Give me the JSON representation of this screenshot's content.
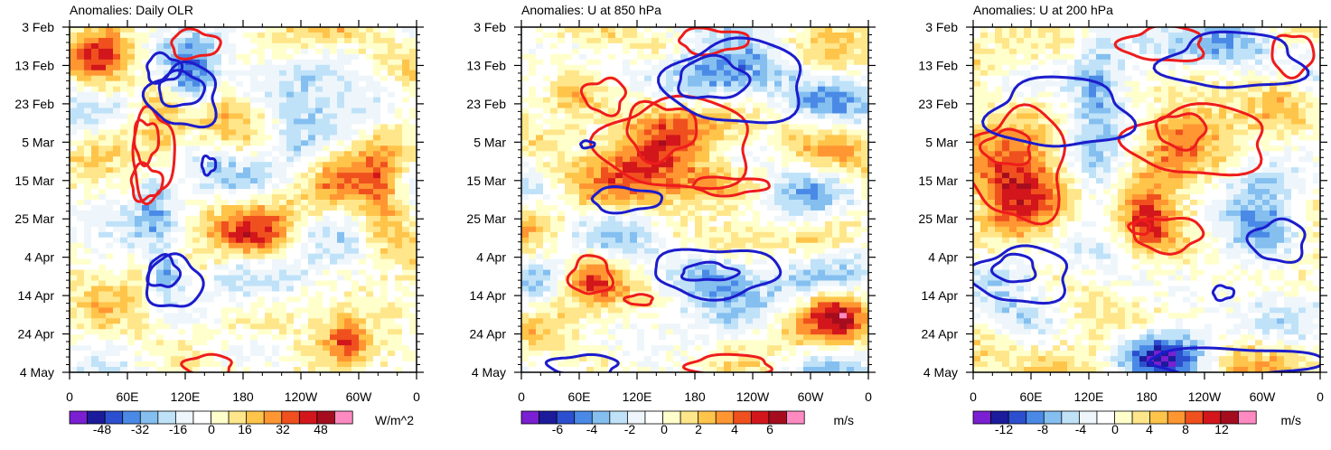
{
  "chart_data": [
    {
      "type": "heatmap",
      "title": "Anomalies: Daily OLR",
      "xlabel": "",
      "ylabel": "",
      "x_ticks": [
        "0",
        "60E",
        "120E",
        "180",
        "120W",
        "60W",
        "0"
      ],
      "y_ticks": [
        "3 Feb",
        "13 Feb",
        "23 Feb",
        "5 Mar",
        "15 Mar",
        "25 Mar",
        "4 Apr",
        "14 Apr",
        "24 Apr",
        "4 May"
      ],
      "colorbar": {
        "labels": [
          "-48",
          "-32",
          "-16",
          "0",
          "16",
          "32",
          "48"
        ],
        "units": "W/m^2"
      },
      "seed": 11,
      "field": [
        {
          "x": 0.25,
          "y": 0.45,
          "a": -0.8,
          "sx": 0.04,
          "sy": 0.1
        },
        {
          "x": 0.28,
          "y": 0.72,
          "a": -1.0,
          "sx": 0.035,
          "sy": 0.05
        },
        {
          "x": 0.35,
          "y": 0.17,
          "a": -1.0,
          "sx": 0.05,
          "sy": 0.06
        },
        {
          "x": 0.26,
          "y": 0.35,
          "a": 0.9,
          "sx": 0.04,
          "sy": 0.08
        },
        {
          "x": 0.1,
          "y": 0.1,
          "a": 0.6,
          "sx": 0.05,
          "sy": 0.08
        },
        {
          "x": 0.65,
          "y": 0.35,
          "a": -0.5,
          "sx": 0.06,
          "sy": 0.1
        },
        {
          "x": 0.9,
          "y": 0.5,
          "a": 0.7,
          "sx": 0.05,
          "sy": 0.12
        },
        {
          "x": 0.8,
          "y": 0.9,
          "a": 0.8,
          "sx": 0.04,
          "sy": 0.05
        },
        {
          "x": 0.55,
          "y": 0.62,
          "a": 0.6,
          "sx": 0.08,
          "sy": 0.05
        }
      ],
      "contours": [
        {
          "sign": "pos",
          "cx": 0.24,
          "cy": 0.37,
          "rx": 0.06,
          "ry": 0.13
        },
        {
          "sign": "pos",
          "cx": 0.22,
          "cy": 0.33,
          "rx": 0.035,
          "ry": 0.06
        },
        {
          "sign": "pos",
          "cx": 0.22,
          "cy": 0.45,
          "rx": 0.045,
          "ry": 0.05
        },
        {
          "sign": "pos",
          "cx": 0.36,
          "cy": 0.05,
          "rx": 0.07,
          "ry": 0.04
        },
        {
          "sign": "pos",
          "cx": 0.4,
          "cy": 0.98,
          "rx": 0.07,
          "ry": 0.03
        },
        {
          "sign": "neg",
          "cx": 0.33,
          "cy": 0.2,
          "rx": 0.1,
          "ry": 0.09
        },
        {
          "sign": "neg",
          "cx": 0.32,
          "cy": 0.18,
          "rx": 0.065,
          "ry": 0.05
        },
        {
          "sign": "neg",
          "cx": 0.27,
          "cy": 0.12,
          "rx": 0.05,
          "ry": 0.04
        },
        {
          "sign": "neg",
          "cx": 0.3,
          "cy": 0.74,
          "rx": 0.08,
          "ry": 0.075
        },
        {
          "sign": "neg",
          "cx": 0.27,
          "cy": 0.71,
          "rx": 0.045,
          "ry": 0.045
        },
        {
          "sign": "neg",
          "cx": 0.4,
          "cy": 0.4,
          "rx": 0.02,
          "ry": 0.025
        }
      ]
    },
    {
      "type": "heatmap",
      "title": "Anomalies: U at 850 hPa",
      "xlabel": "",
      "ylabel": "",
      "x_ticks": [
        "0",
        "60E",
        "120E",
        "180",
        "120W",
        "60W",
        "0"
      ],
      "y_ticks": [
        "3 Feb",
        "13 Feb",
        "23 Feb",
        "5 Mar",
        "15 Mar",
        "25 Mar",
        "4 Apr",
        "14 Apr",
        "24 Apr",
        "4 May"
      ],
      "colorbar": {
        "labels": [
          "-6",
          "-4",
          "-2",
          "0",
          "2",
          "4",
          "6"
        ],
        "units": "m/s"
      },
      "seed": 23,
      "field": [
        {
          "x": 0.55,
          "y": 0.15,
          "a": -1.0,
          "sx": 0.15,
          "sy": 0.07
        },
        {
          "x": 0.4,
          "y": 0.32,
          "a": 1.0,
          "sx": 0.12,
          "sy": 0.1
        },
        {
          "x": 0.55,
          "y": 0.45,
          "a": 0.7,
          "sx": 0.12,
          "sy": 0.04
        },
        {
          "x": 0.55,
          "y": 0.72,
          "a": -0.9,
          "sx": 0.12,
          "sy": 0.05
        },
        {
          "x": 0.2,
          "y": 0.72,
          "a": 0.8,
          "sx": 0.05,
          "sy": 0.05
        },
        {
          "x": 0.8,
          "y": 0.5,
          "a": -0.4,
          "sx": 0.08,
          "sy": 0.08
        },
        {
          "x": 0.9,
          "y": 0.82,
          "a": 0.6,
          "sx": 0.06,
          "sy": 0.05
        },
        {
          "x": 0.15,
          "y": 0.2,
          "a": 0.5,
          "sx": 0.06,
          "sy": 0.06
        }
      ],
      "contours": [
        {
          "sign": "pos",
          "cx": 0.45,
          "cy": 0.34,
          "rx": 0.22,
          "ry": 0.13
        },
        {
          "sign": "pos",
          "cx": 0.4,
          "cy": 0.3,
          "rx": 0.1,
          "ry": 0.08
        },
        {
          "sign": "pos",
          "cx": 0.24,
          "cy": 0.2,
          "rx": 0.06,
          "ry": 0.05
        },
        {
          "sign": "pos",
          "cx": 0.6,
          "cy": 0.46,
          "rx": 0.11,
          "ry": 0.025
        },
        {
          "sign": "pos",
          "cx": 0.55,
          "cy": 0.04,
          "rx": 0.1,
          "ry": 0.035
        },
        {
          "sign": "pos",
          "cx": 0.2,
          "cy": 0.72,
          "rx": 0.06,
          "ry": 0.055
        },
        {
          "sign": "pos",
          "cx": 0.34,
          "cy": 0.79,
          "rx": 0.04,
          "ry": 0.015
        },
        {
          "sign": "pos",
          "cx": 0.6,
          "cy": 0.98,
          "rx": 0.12,
          "ry": 0.03
        },
        {
          "sign": "neg",
          "cx": 0.62,
          "cy": 0.16,
          "rx": 0.2,
          "ry": 0.12
        },
        {
          "sign": "neg",
          "cx": 0.55,
          "cy": 0.15,
          "rx": 0.1,
          "ry": 0.06
        },
        {
          "sign": "neg",
          "cx": 0.3,
          "cy": 0.5,
          "rx": 0.1,
          "ry": 0.035
        },
        {
          "sign": "neg",
          "cx": 0.56,
          "cy": 0.71,
          "rx": 0.18,
          "ry": 0.07
        },
        {
          "sign": "neg",
          "cx": 0.54,
          "cy": 0.71,
          "rx": 0.08,
          "ry": 0.025
        },
        {
          "sign": "neg",
          "cx": 0.18,
          "cy": 0.98,
          "rx": 0.1,
          "ry": 0.03
        },
        {
          "sign": "neg",
          "cx": 0.19,
          "cy": 0.34,
          "rx": 0.02,
          "ry": 0.01
        }
      ]
    },
    {
      "type": "heatmap",
      "title": "Anomalies: U at 200 hPa",
      "xlabel": "",
      "ylabel": "",
      "x_ticks": [
        "0",
        "60E",
        "120E",
        "180",
        "120W",
        "60W",
        "0"
      ],
      "y_ticks": [
        "3 Feb",
        "13 Feb",
        "23 Feb",
        "5 Mar",
        "15 Mar",
        "25 Mar",
        "4 Apr",
        "14 Apr",
        "24 Apr",
        "4 May"
      ],
      "colorbar": {
        "labels": [
          "-12",
          "-8",
          "-4",
          "0",
          "4",
          "8",
          "12"
        ],
        "units": "m/s"
      },
      "seed": 37,
      "field": [
        {
          "x": 0.12,
          "y": 0.45,
          "a": 1.0,
          "sx": 0.1,
          "sy": 0.15
        },
        {
          "x": 0.35,
          "y": 0.22,
          "a": -0.9,
          "sx": 0.06,
          "sy": 0.15
        },
        {
          "x": 0.6,
          "y": 0.3,
          "a": 0.9,
          "sx": 0.08,
          "sy": 0.08
        },
        {
          "x": 0.5,
          "y": 0.55,
          "a": 0.8,
          "sx": 0.05,
          "sy": 0.08
        },
        {
          "x": 0.1,
          "y": 0.7,
          "a": -0.8,
          "sx": 0.08,
          "sy": 0.07
        },
        {
          "x": 0.85,
          "y": 0.55,
          "a": -0.6,
          "sx": 0.08,
          "sy": 0.12
        },
        {
          "x": 0.9,
          "y": 0.2,
          "a": 0.6,
          "sx": 0.06,
          "sy": 0.06
        },
        {
          "x": 0.55,
          "y": 0.95,
          "a": -0.8,
          "sx": 0.08,
          "sy": 0.05
        },
        {
          "x": 0.75,
          "y": 0.05,
          "a": -0.8,
          "sx": 0.1,
          "sy": 0.05
        }
      ],
      "contours": [
        {
          "sign": "pos",
          "cx": 0.13,
          "cy": 0.4,
          "rx": 0.14,
          "ry": 0.16
        },
        {
          "sign": "pos",
          "cx": 0.1,
          "cy": 0.35,
          "rx": 0.07,
          "ry": 0.05
        },
        {
          "sign": "pos",
          "cx": 0.65,
          "cy": 0.33,
          "rx": 0.2,
          "ry": 0.1
        },
        {
          "sign": "pos",
          "cx": 0.6,
          "cy": 0.3,
          "rx": 0.07,
          "ry": 0.05
        },
        {
          "sign": "pos",
          "cx": 0.55,
          "cy": 0.05,
          "rx": 0.12,
          "ry": 0.05
        },
        {
          "sign": "pos",
          "cx": 0.56,
          "cy": 0.6,
          "rx": 0.1,
          "ry": 0.05
        },
        {
          "sign": "pos",
          "cx": 0.48,
          "cy": 0.58,
          "rx": 0.03,
          "ry": 0.02
        },
        {
          "sign": "pos",
          "cx": 0.92,
          "cy": 0.08,
          "rx": 0.06,
          "ry": 0.06
        },
        {
          "sign": "neg",
          "cx": 0.25,
          "cy": 0.25,
          "rx": 0.2,
          "ry": 0.1
        },
        {
          "sign": "neg",
          "cx": 0.14,
          "cy": 0.72,
          "rx": 0.14,
          "ry": 0.08
        },
        {
          "sign": "neg",
          "cx": 0.12,
          "cy": 0.7,
          "rx": 0.06,
          "ry": 0.04
        },
        {
          "sign": "neg",
          "cx": 0.75,
          "cy": 0.1,
          "rx": 0.2,
          "ry": 0.08
        },
        {
          "sign": "neg",
          "cx": 0.75,
          "cy": 0.97,
          "rx": 0.25,
          "ry": 0.04
        },
        {
          "sign": "neg",
          "cx": 0.88,
          "cy": 0.62,
          "rx": 0.08,
          "ry": 0.06
        },
        {
          "sign": "neg",
          "cx": 0.72,
          "cy": 0.77,
          "rx": 0.03,
          "ry": 0.02
        }
      ]
    }
  ],
  "colors": {
    "palette": [
      "#7a1fd1",
      "#1b1b9c",
      "#2c4fcf",
      "#4a8ae6",
      "#84bff0",
      "#bfe2f8",
      "#eef6fb",
      "#ffffff",
      "#ffffcc",
      "#ffe68a",
      "#ffc44a",
      "#ff9632",
      "#f0501e",
      "#d2161b",
      "#a50d1e",
      "#ff8ac2"
    ],
    "contour_pos": "#ee1c1c",
    "contour_neg": "#1c1ccc"
  }
}
